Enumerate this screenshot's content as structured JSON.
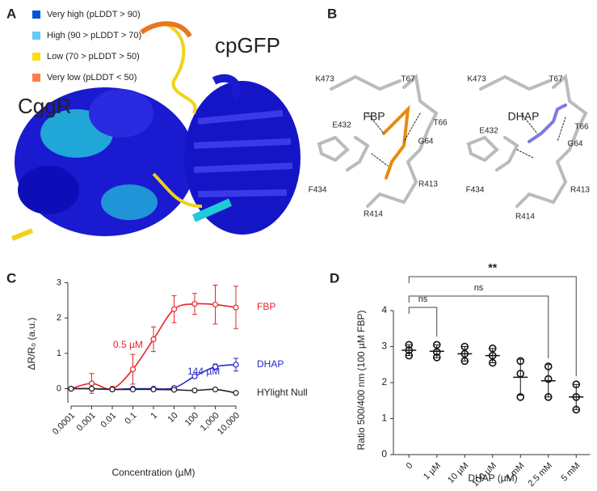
{
  "panels": {
    "labels": [
      "A",
      "B",
      "C",
      "D"
    ]
  },
  "panel_a": {
    "legend": [
      {
        "label": "Very high (pLDDT > 90)",
        "color": "#0053d6"
      },
      {
        "label": "High (90 > pLDDT > 70)",
        "color": "#65cbf3"
      },
      {
        "label": "Low (70 > pLDDT > 50)",
        "color": "#ffdb13"
      },
      {
        "label": "Very low (pLDDT < 50)",
        "color": "#ff7d45"
      }
    ],
    "labels": [
      "CggR",
      "cpGFP"
    ]
  },
  "panel_b": {
    "labels": [
      "K473",
      "T67",
      "FBP",
      "E432",
      "T66",
      "G64",
      "F434",
      "R413",
      "R414",
      "K473",
      "T67",
      "DHAP",
      "E432",
      "T66",
      "G64",
      "F434",
      "R413",
      "R414"
    ]
  },
  "chart_data": [
    {
      "type": "line",
      "x_label": "Concentration (µM)",
      "y_label": "ΔR/R₀ (a.u.)",
      "log_x": true,
      "x": [
        0.0001,
        0.001,
        0.01,
        0.1,
        1,
        10,
        100,
        1000,
        10000
      ],
      "xlim": [
        0.0001,
        10000
      ],
      "xticks": [
        0.0001,
        0.001,
        0.01,
        0.1,
        1,
        10,
        100,
        {
          "value": 1000,
          "label": "1,000"
        },
        {
          "value": 10000,
          "label": "10,000"
        }
      ],
      "ylim": [
        -0.4,
        3
      ],
      "yticks": [
        0,
        1,
        2,
        3
      ],
      "series": [
        {
          "name": "FBP",
          "color": "#e8232a",
          "values": [
            0,
            0.15,
            0.0,
            0.55,
            1.4,
            2.25,
            2.4,
            2.38,
            2.3
          ],
          "errors": [
            0,
            0.28,
            0.05,
            0.42,
            0.35,
            0.38,
            0.3,
            0.55,
            0.6
          ]
        },
        {
          "name": "DHAP",
          "color": "#2a2acc",
          "values": [
            0,
            0,
            -0.02,
            0,
            0,
            0.02,
            0.35,
            0.62,
            0.68
          ],
          "errors": [
            0,
            0,
            0,
            0,
            0,
            0.03,
            0.05,
            0.08,
            0.18
          ]
        },
        {
          "name": "HYlight Null",
          "color": "#222222",
          "values": [
            0,
            0,
            -0.02,
            -0.02,
            -0.02,
            -0.03,
            -0.05,
            -0.02,
            -0.12
          ],
          "errors": [
            0,
            0,
            0,
            0,
            0,
            0,
            0,
            0,
            0.03
          ]
        }
      ],
      "annotations": [
        {
          "text": "0.5 µM",
          "series": "FBP"
        },
        {
          "text": "144 µM",
          "series": "DHAP"
        }
      ]
    },
    {
      "type": "dot",
      "x_label": "DHAP (µM)",
      "y_label": "Ratio 500/400 nm (100 µM FBP)",
      "categories": [
        "0",
        "1 µM",
        "10 µM",
        "100 µM",
        "1 mM",
        "2.5 mM",
        "5 mM"
      ],
      "values": [
        2.9,
        2.87,
        2.8,
        2.75,
        2.15,
        2.05,
        1.6
      ],
      "errors": [
        0.15,
        0.18,
        0.2,
        0.2,
        0.5,
        0.45,
        0.35
      ],
      "points": [
        [
          3.05,
          2.9,
          2.75
        ],
        [
          3.05,
          2.85,
          2.7
        ],
        [
          3.0,
          2.8,
          2.6
        ],
        [
          2.95,
          2.75,
          2.55
        ],
        [
          2.6,
          2.25,
          1.6
        ],
        [
          2.45,
          2.1,
          1.6
        ],
        [
          1.95,
          1.6,
          1.25
        ]
      ],
      "ylim": [
        0,
        4
      ],
      "yticks": [
        0,
        1,
        2,
        3,
        4
      ],
      "color": "#111111",
      "comparisons": [
        {
          "label": "ns",
          "from": "0",
          "to": "1 µM"
        },
        {
          "label": "ns",
          "from": "0",
          "to": "2.5 mM"
        },
        {
          "label": "**",
          "from": "0",
          "to": "5 mM"
        }
      ]
    }
  ]
}
